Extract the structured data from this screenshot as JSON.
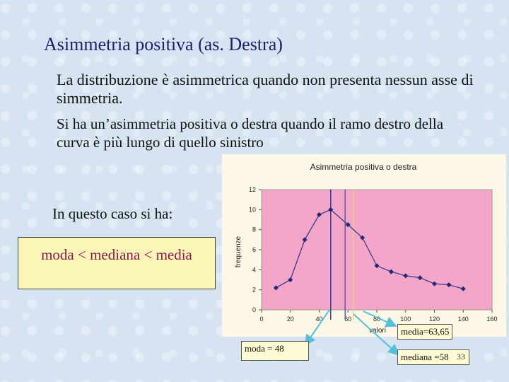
{
  "slide": {
    "title": "Asimmetria positiva (as. Destra)",
    "paragraph1": "La distribuzione è asimmetrica quando non presenta nessun asse di simmetria.",
    "paragraph2": "Si ha un’asimmetria positiva o destra quando il ramo destro della curva è più lungo di quello sinistro",
    "case_label": "In questo caso si ha:",
    "box_text": "moda < mediana < media",
    "page_number": "33"
  },
  "annotations": {
    "mode": "moda = 48",
    "mean": "media=63,65",
    "median": "mediana =58"
  },
  "colors": {
    "title": "#1e1e6e",
    "box_text": "#8b1a4a",
    "plot_bg": "#f4a6c8",
    "line": "#3b3b8f",
    "mode_line": "#1f2a9e",
    "median_line": "#4a4aa0",
    "mean_line": "#e3d27a"
  },
  "chart_data": {
    "type": "line",
    "title": "Asimmetria positiva  o  destra",
    "xlabel": "valori",
    "ylabel": "frequenze",
    "xlim": [
      0,
      160
    ],
    "ylim": [
      0,
      12
    ],
    "xticks": [
      0,
      20,
      40,
      60,
      80,
      100,
      120,
      140,
      160
    ],
    "yticks": [
      0,
      2,
      4,
      6,
      8,
      10,
      12
    ],
    "series": [
      {
        "x": [
          10,
          20,
          30,
          40,
          48,
          60,
          70,
          80,
          90,
          100,
          110,
          120,
          130,
          140
        ],
        "values": [
          2.2,
          3.0,
          7.0,
          9.5,
          10.0,
          8.5,
          7.2,
          4.4,
          3.8,
          3.4,
          3.2,
          2.6,
          2.5,
          2.1
        ]
      }
    ],
    "vertical_lines": {
      "moda": 48,
      "mediana": 58,
      "media": 63.65
    },
    "grid": false
  }
}
